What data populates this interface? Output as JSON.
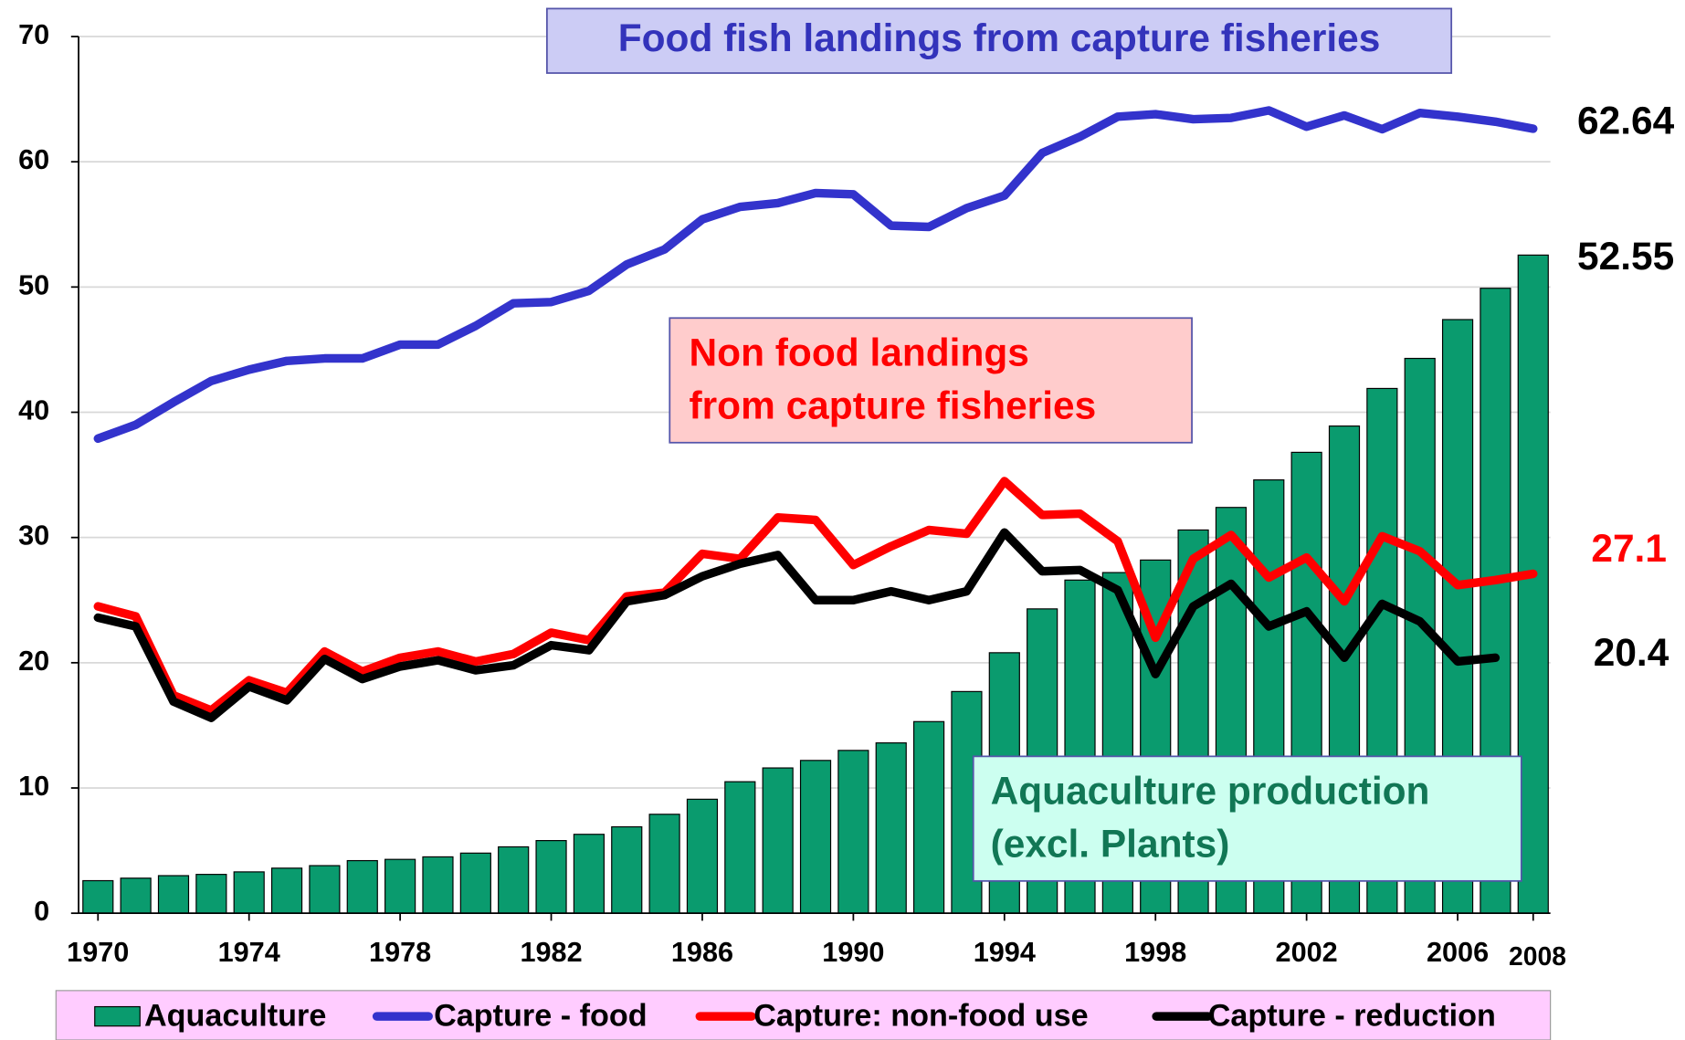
{
  "chart_data": {
    "type": "bar_line",
    "x": [
      1970,
      1971,
      1972,
      1973,
      1974,
      1975,
      1976,
      1977,
      1978,
      1979,
      1980,
      1981,
      1982,
      1983,
      1984,
      1985,
      1986,
      1987,
      1988,
      1989,
      1990,
      1991,
      1992,
      1993,
      1994,
      1995,
      1996,
      1997,
      1998,
      1999,
      2000,
      2001,
      2002,
      2003,
      2004,
      2005,
      2006,
      2007,
      2008
    ],
    "series": [
      {
        "name": "Aquaculture",
        "type": "bar",
        "color": "#0a9b6e",
        "values": [
          2.6,
          2.8,
          3.0,
          3.1,
          3.3,
          3.6,
          3.8,
          4.2,
          4.3,
          4.5,
          4.8,
          5.3,
          5.8,
          6.3,
          6.9,
          7.9,
          9.1,
          10.5,
          11.6,
          12.2,
          13.0,
          13.6,
          15.3,
          17.7,
          20.8,
          24.3,
          26.6,
          27.2,
          28.2,
          30.6,
          32.4,
          34.6,
          36.8,
          38.9,
          41.9,
          44.3,
          47.4,
          49.9,
          52.55
        ]
      },
      {
        "name": "Capture - food",
        "type": "line",
        "color": "#3333cc",
        "values": [
          37.9,
          39.0,
          40.8,
          42.5,
          43.4,
          44.1,
          44.3,
          44.3,
          45.4,
          45.4,
          46.9,
          48.7,
          48.8,
          49.7,
          51.8,
          53.0,
          55.4,
          56.4,
          56.7,
          57.5,
          57.4,
          54.9,
          54.8,
          56.3,
          57.3,
          60.7,
          62.0,
          63.6,
          63.8,
          63.4,
          63.5,
          64.1,
          62.8,
          63.7,
          62.6,
          63.9,
          63.6,
          63.2,
          62.64
        ]
      },
      {
        "name": "Capture: non-food use",
        "type": "line",
        "color": "#ff0000",
        "values": [
          24.5,
          23.7,
          17.4,
          16.2,
          18.6,
          17.6,
          20.9,
          19.3,
          20.4,
          20.9,
          20.1,
          20.7,
          22.4,
          21.8,
          25.3,
          25.6,
          28.7,
          28.3,
          31.6,
          31.4,
          27.8,
          29.3,
          30.6,
          30.3,
          34.5,
          31.8,
          31.9,
          29.7,
          22.0,
          28.3,
          30.2,
          26.8,
          28.4,
          24.9,
          30.1,
          28.9,
          26.2,
          26.6,
          27.1
        ]
      },
      {
        "name": "Capture - reduction",
        "type": "line",
        "color": "#000000",
        "values": [
          23.6,
          22.9,
          16.9,
          15.6,
          18.1,
          17.0,
          20.3,
          18.7,
          19.7,
          20.2,
          19.4,
          19.8,
          21.4,
          21.0,
          24.9,
          25.4,
          26.9,
          27.9,
          28.6,
          25.0,
          25.0,
          25.7,
          25.0,
          25.7,
          30.4,
          27.3,
          27.4,
          25.8,
          19.1,
          24.5,
          26.3,
          22.9,
          24.1,
          20.4,
          24.7,
          23.3,
          20.1,
          20.4,
          null
        ]
      }
    ],
    "end_labels": [
      {
        "series": 1,
        "index": 38,
        "color": "#000000"
      },
      {
        "series": 0,
        "index": 38,
        "color": "#000000"
      },
      {
        "series": 2,
        "index": 38,
        "color": "#ff0000"
      },
      {
        "series": 3,
        "index": 37,
        "color": "#000000"
      }
    ],
    "annotations": [
      {
        "lines": [
          "Food fish landings from capture fisheries"
        ],
        "color": "#3333bb",
        "fill": "#ccccf5",
        "stroke": "#5555aa"
      },
      {
        "lines": [
          "Non food landings",
          "from capture fisheries"
        ],
        "color": "#ff0000",
        "fill": "#ffcccc",
        "stroke": "#5555aa"
      },
      {
        "lines": [
          "Aquaculture production",
          "(excl. Plants)"
        ],
        "color": "#117755",
        "fill": "#ccfff0",
        "stroke": "#5555aa"
      }
    ],
    "xlim": [
      1969.5,
      2008.5
    ],
    "xticks": [
      1970,
      1974,
      1978,
      1982,
      1986,
      1990,
      1994,
      1998,
      2002,
      2006,
      2008
    ],
    "ylim": [
      0,
      70
    ],
    "yticks": [
      0,
      10,
      20,
      30,
      40,
      50,
      60,
      70
    ],
    "grid": true,
    "legend": "bottom"
  }
}
